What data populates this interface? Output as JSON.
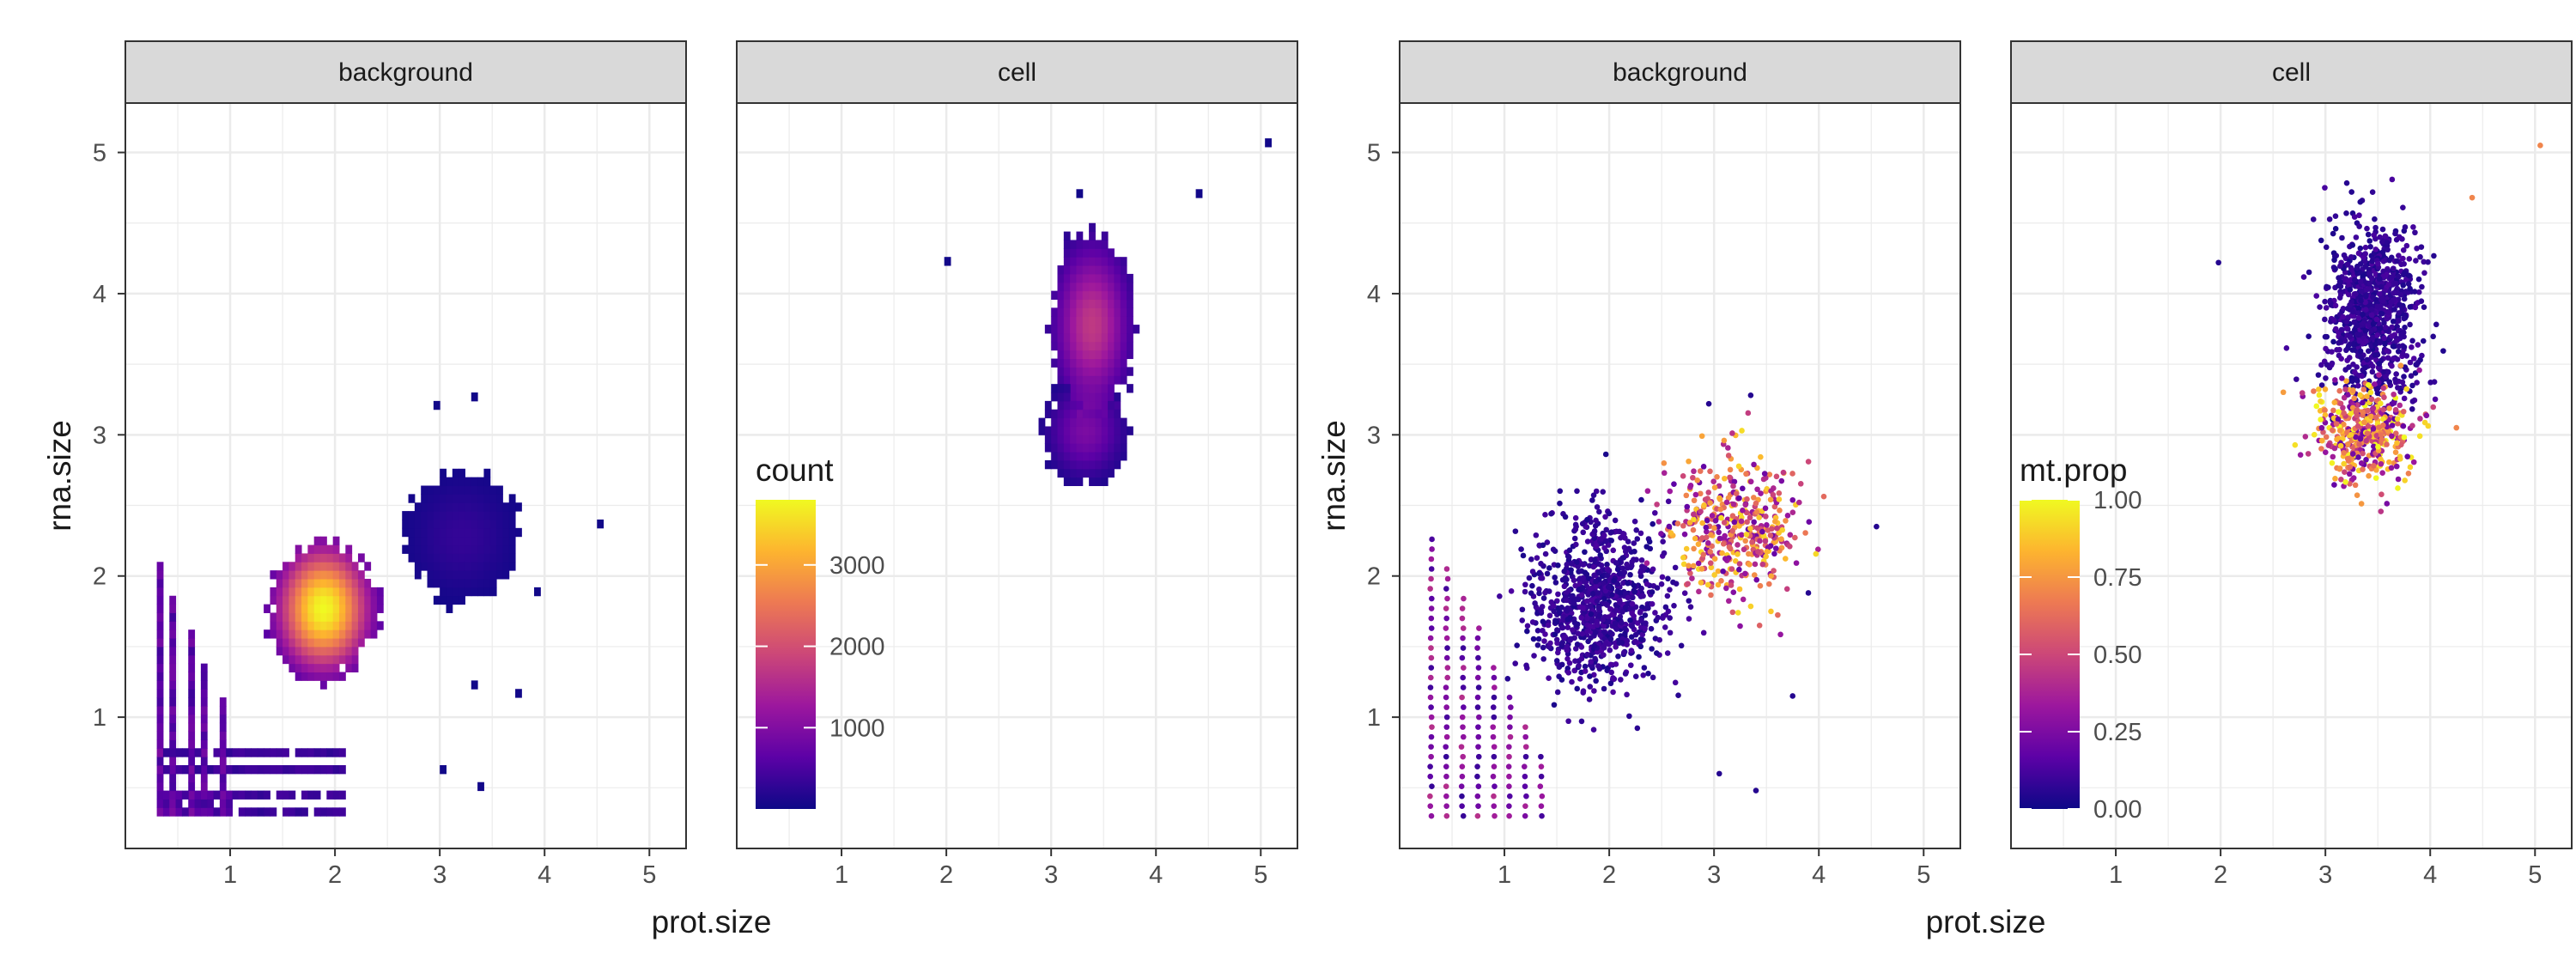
{
  "colors": {
    "strip_fill": "#d9d9d9",
    "panel_border": "#333333",
    "grid": "#ebebeb",
    "tick_text": "#4d4d4d",
    "title_text": "#1a1a1a",
    "scale": [
      "#0d0887",
      "#5c01a6",
      "#9c179e",
      "#cc4778",
      "#ed7953",
      "#fdb42f",
      "#f0f921"
    ]
  },
  "chart_data": [
    {
      "type": "heatmap",
      "title": "",
      "xlabel": "prot.size",
      "ylabel": "rna.size",
      "xlim": [
        0.0,
        5.35
      ],
      "ylim": [
        0.07,
        5.35
      ],
      "xticks": [
        1,
        2,
        3,
        4,
        5
      ],
      "yticks": [
        1,
        2,
        3,
        4,
        5
      ],
      "grid": true,
      "facets": [
        "background",
        "cell"
      ],
      "bin_width": 0.06,
      "legend": {
        "title": "count",
        "breaks": [
          1000,
          2000,
          3000
        ],
        "labels": [
          "1000",
          "2000",
          "3000"
        ],
        "range": [
          1,
          3800
        ],
        "placement": "inside cell panel, lower-left"
      },
      "clusters": [
        {
          "facet": "background",
          "center": [
            1.9,
            1.75
          ],
          "spread": [
            0.28,
            0.28
          ],
          "peak": 3800
        },
        {
          "facet": "background",
          "x_columns": [
            0.3,
            0.45,
            0.6,
            0.75,
            0.9
          ],
          "y_range": [
            0.3,
            2.1
          ]
        },
        {
          "facet": "background",
          "center": [
            3.2,
            2.3
          ],
          "spread": [
            0.3,
            0.25
          ],
          "peak": 40
        },
        {
          "facet": "cell",
          "center": [
            3.4,
            3.8
          ],
          "spread": [
            0.22,
            0.35
          ],
          "peak": 900
        },
        {
          "facet": "cell",
          "center": [
            3.35,
            3.05
          ],
          "spread": [
            0.22,
            0.2
          ],
          "peak": 300
        }
      ],
      "outliers": [
        {
          "facet": "background",
          "x": 2.95,
          "y": 3.22
        },
        {
          "facet": "background",
          "x": 3.35,
          "y": 3.28
        },
        {
          "facet": "background",
          "x": 4.55,
          "y": 2.35
        },
        {
          "facet": "background",
          "x": 3.9,
          "y": 1.88
        },
        {
          "facet": "background",
          "x": 3.75,
          "y": 1.15
        },
        {
          "facet": "background",
          "x": 3.3,
          "y": 1.25
        },
        {
          "facet": "background",
          "x": 3.05,
          "y": 0.6
        },
        {
          "facet": "background",
          "x": 3.4,
          "y": 0.48
        },
        {
          "facet": "cell",
          "x": 5.05,
          "y": 5.05
        },
        {
          "facet": "cell",
          "x": 1.98,
          "y": 4.2
        },
        {
          "facet": "cell",
          "x": 4.4,
          "y": 4.68
        },
        {
          "facet": "cell",
          "x": 3.25,
          "y": 4.72
        }
      ]
    },
    {
      "type": "scatter",
      "title": "",
      "xlabel": "prot.size",
      "ylabel": "rna.size",
      "xlim": [
        0.0,
        5.35
      ],
      "ylim": [
        0.07,
        5.35
      ],
      "xticks": [
        1,
        2,
        3,
        4,
        5
      ],
      "yticks": [
        1,
        2,
        3,
        4,
        5
      ],
      "grid": true,
      "facets": [
        "background",
        "cell"
      ],
      "legend": {
        "title": "mt.prop",
        "breaks": [
          0.0,
          0.25,
          0.5,
          0.75,
          1.0
        ],
        "labels": [
          "0.00",
          "0.25",
          "0.50",
          "0.75",
          "1.00"
        ],
        "range": [
          0,
          1
        ],
        "placement": "inside cell panel, lower-left"
      },
      "clusters": [
        {
          "facet": "background",
          "center": [
            1.9,
            1.8
          ],
          "spread": [
            0.3,
            0.3
          ],
          "mt_prop": 0.08
        },
        {
          "facet": "background",
          "x_columns": [
            0.3,
            0.45,
            0.6,
            0.75,
            0.9,
            1.05,
            1.2,
            1.35
          ],
          "y_range": [
            0.3,
            2.3
          ],
          "mt_prop": 0.25
        },
        {
          "facet": "background",
          "center": [
            3.2,
            2.35
          ],
          "spread": [
            0.3,
            0.25
          ],
          "mt_prop": 0.55
        },
        {
          "facet": "cell",
          "center": [
            3.45,
            3.85
          ],
          "spread": [
            0.22,
            0.3
          ],
          "mt_prop": 0.08
        },
        {
          "facet": "cell",
          "center": [
            3.35,
            3.0
          ],
          "spread": [
            0.25,
            0.18
          ],
          "mt_prop": 0.6
        }
      ],
      "outliers": [
        {
          "facet": "background",
          "x": 2.95,
          "y": 3.22
        },
        {
          "facet": "background",
          "x": 3.35,
          "y": 3.28
        },
        {
          "facet": "background",
          "x": 4.55,
          "y": 2.35
        },
        {
          "facet": "background",
          "x": 3.9,
          "y": 1.88
        },
        {
          "facet": "background",
          "x": 3.75,
          "y": 1.15
        },
        {
          "facet": "background",
          "x": 3.05,
          "y": 0.6
        },
        {
          "facet": "background",
          "x": 3.4,
          "y": 0.48
        },
        {
          "facet": "cell",
          "x": 5.05,
          "y": 5.05
        },
        {
          "facet": "cell",
          "x": 1.98,
          "y": 4.22
        },
        {
          "facet": "cell",
          "x": 4.4,
          "y": 4.68
        },
        {
          "facet": "cell",
          "x": 3.25,
          "y": 4.72
        },
        {
          "facet": "cell",
          "x": 4.25,
          "y": 3.05
        }
      ]
    }
  ]
}
